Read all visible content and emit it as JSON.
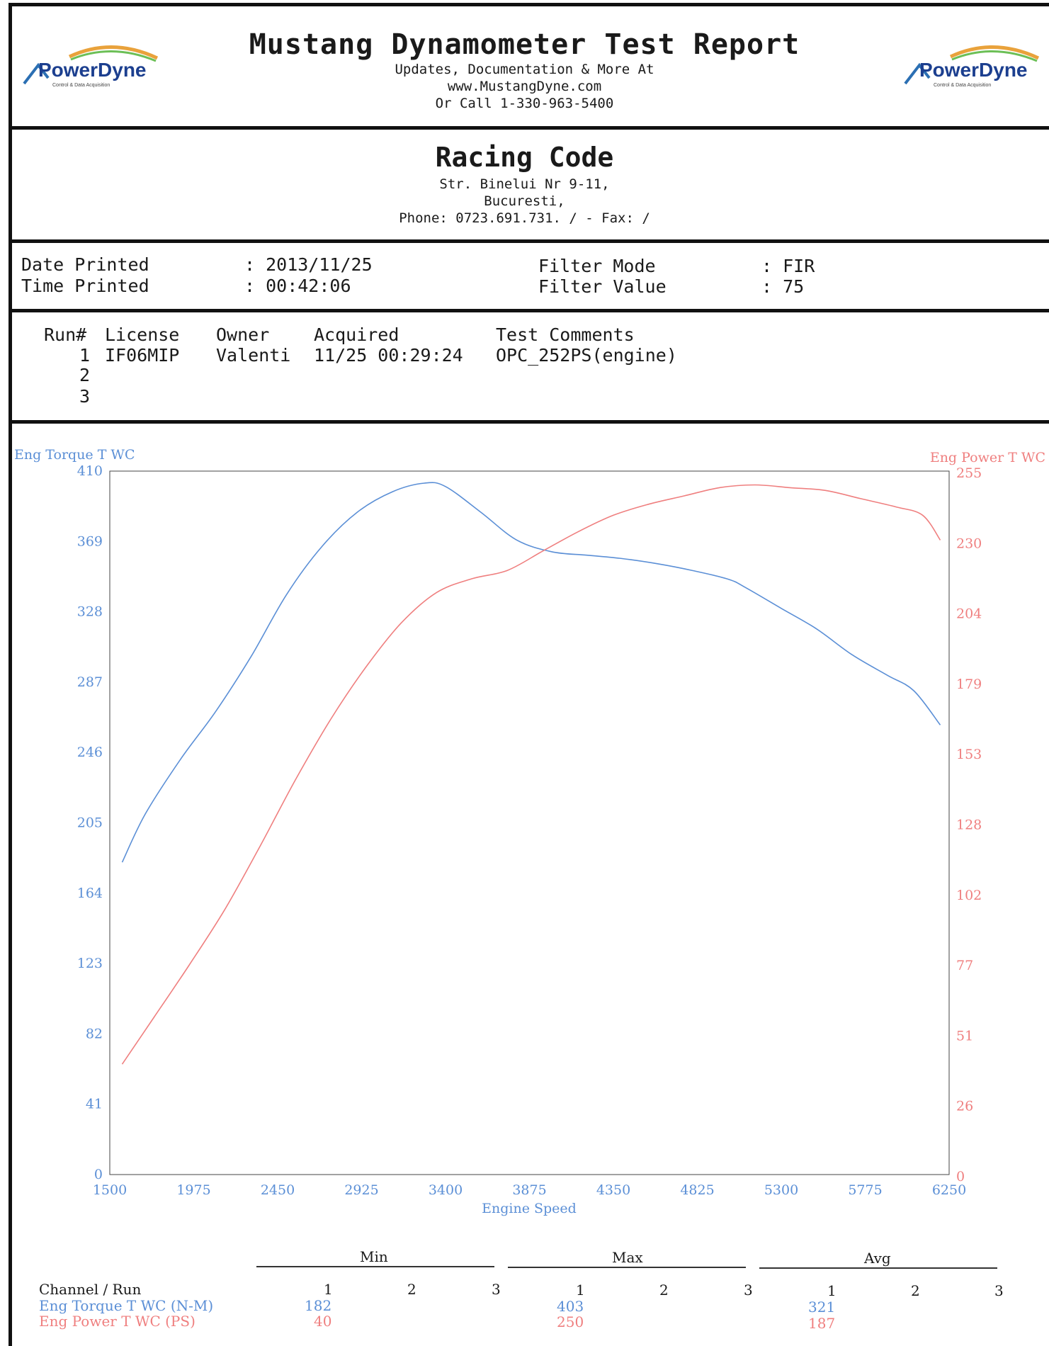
{
  "header": {
    "title": "Mustang Dynamometer Test Report",
    "line1": "Updates, Documentation & More At",
    "line2": "www.MustangDyne.com",
    "line3": "Or Call 1-330-963-5400",
    "logo_text_left": "PowerDyne",
    "logo_tagline": "Control & Data Acquisition"
  },
  "shop": {
    "name": "Racing Code",
    "address1": "Str. Binelui Nr 9-11,",
    "address2": "Bucuresti,",
    "phone": "Phone: 0723.691.731. /  - Fax:  /"
  },
  "meta": {
    "date_label": "Date Printed",
    "date_value": ": 2013/11/25",
    "time_label": "Time Printed",
    "time_value": ": 00:42:06",
    "filter_mode_label": "Filter Mode",
    "filter_mode_value": ": FIR",
    "filter_value_label": "Filter Value",
    "filter_value_value": ": 75"
  },
  "runs": {
    "headers": [
      "Run#",
      "License",
      "Owner",
      "Acquired",
      "Test Comments"
    ],
    "rows": [
      {
        "run": "1",
        "license": "IF06MIP",
        "owner": "Valenti",
        "acquired": "11/25 00:29:24",
        "comments": "OPC_252PS(engine)"
      },
      {
        "run": "2",
        "license": "",
        "owner": "",
        "acquired": "",
        "comments": ""
      },
      {
        "run": "3",
        "license": "",
        "owner": "",
        "acquired": "",
        "comments": ""
      }
    ]
  },
  "chart_data": {
    "type": "line",
    "xlabel": "Engine Speed",
    "ylabel_left": "Eng Torque T WC",
    "ylabel_right": "Eng Power T WC",
    "xlim": [
      1500,
      6250
    ],
    "ylim_left": [
      0,
      410
    ],
    "ylim_right": [
      0,
      255
    ],
    "x_ticks": [
      "1500",
      "1975",
      "2450",
      "2925",
      "3400",
      "3875",
      "4350",
      "4825",
      "5300",
      "5775",
      "6250"
    ],
    "y_ticks_left": [
      "0",
      "41",
      "82",
      "123",
      "164",
      "205",
      "246",
      "287",
      "328",
      "369",
      "410"
    ],
    "y_ticks_right": [
      "0",
      "26",
      "51",
      "77",
      "102",
      "128",
      "153",
      "179",
      "204",
      "230",
      "255"
    ],
    "grid": false,
    "series": [
      {
        "name": "Eng Torque T WC",
        "axis": "left",
        "color": "#5b8fd6",
        "points": [
          [
            1570,
            182
          ],
          [
            1700,
            210
          ],
          [
            1900,
            242
          ],
          [
            2100,
            270
          ],
          [
            2300,
            302
          ],
          [
            2500,
            338
          ],
          [
            2700,
            366
          ],
          [
            2900,
            386
          ],
          [
            3100,
            398
          ],
          [
            3280,
            403
          ],
          [
            3400,
            401
          ],
          [
            3600,
            386
          ],
          [
            3800,
            370
          ],
          [
            4000,
            363
          ],
          [
            4200,
            361
          ],
          [
            4400,
            359
          ],
          [
            4600,
            356
          ],
          [
            4800,
            352
          ],
          [
            5000,
            347
          ],
          [
            5100,
            342
          ],
          [
            5300,
            330
          ],
          [
            5500,
            318
          ],
          [
            5700,
            303
          ],
          [
            5900,
            291
          ],
          [
            6050,
            282
          ],
          [
            6200,
            262
          ]
        ]
      },
      {
        "name": "Eng Power T WC",
        "axis": "right",
        "color": "#ef7f7f",
        "points": [
          [
            1570,
            40
          ],
          [
            1750,
            57
          ],
          [
            1950,
            76
          ],
          [
            2150,
            96
          ],
          [
            2350,
            119
          ],
          [
            2550,
            143
          ],
          [
            2750,
            165
          ],
          [
            2950,
            184
          ],
          [
            3150,
            200
          ],
          [
            3350,
            211
          ],
          [
            3550,
            216
          ],
          [
            3750,
            219
          ],
          [
            3950,
            226
          ],
          [
            4150,
            233
          ],
          [
            4350,
            239
          ],
          [
            4550,
            243
          ],
          [
            4750,
            246
          ],
          [
            4950,
            249
          ],
          [
            5150,
            250
          ],
          [
            5350,
            249
          ],
          [
            5550,
            248
          ],
          [
            5750,
            245
          ],
          [
            5950,
            242
          ],
          [
            6100,
            239
          ],
          [
            6200,
            230
          ]
        ]
      }
    ]
  },
  "stats": {
    "groups": [
      "Min",
      "Max",
      "Avg"
    ],
    "channel_label": "Channel / Run",
    "run_cols": [
      "1",
      "2",
      "3"
    ],
    "rows": [
      {
        "name": "Eng Torque T WC (N-M)",
        "min": "182",
        "max": "403",
        "avg": "321"
      },
      {
        "name": "Eng Power T WC (PS)",
        "min": "40",
        "max": "250",
        "avg": "187"
      }
    ]
  }
}
